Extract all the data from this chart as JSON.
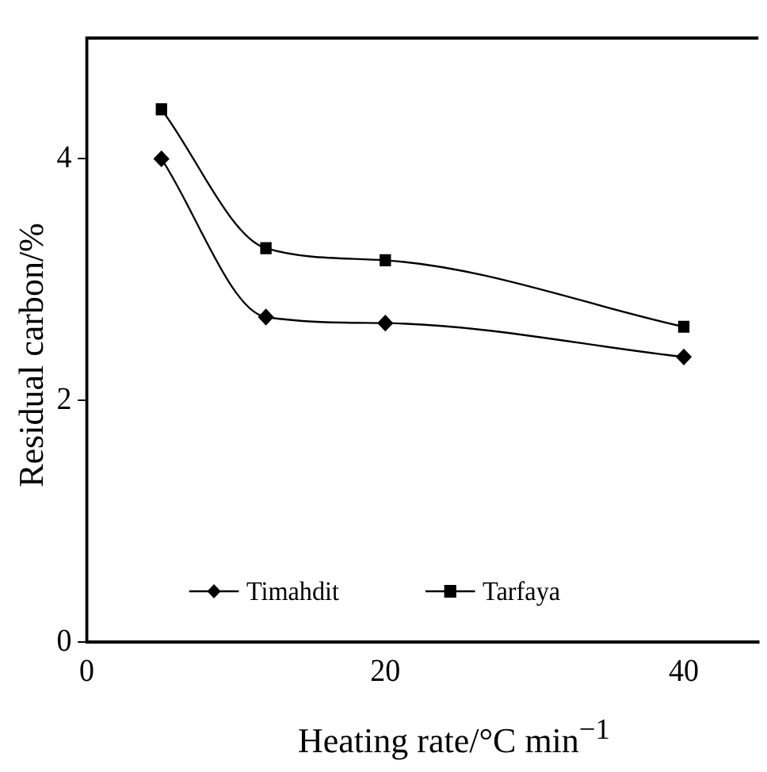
{
  "chart_data": {
    "type": "line",
    "xlabel": "Heating rate/°C min$^{−1}$",
    "ylabel": "Residual carbon/%",
    "x": [
      5,
      12,
      20,
      40
    ],
    "series": [
      {
        "name": "Timahdit",
        "color": "#000000",
        "marker": "diamond",
        "values": [
          4.0,
          2.69,
          2.64,
          2.36
        ]
      },
      {
        "name": "Tarfaya",
        "color": "#000000",
        "marker": "square",
        "values": [
          4.41,
          3.26,
          3.16,
          2.61
        ]
      }
    ],
    "xlim": [
      0,
      45
    ],
    "ylim": [
      0,
      5
    ],
    "xticks": [
      0,
      20,
      40
    ],
    "yticks": [
      0,
      2,
      4
    ],
    "grid": false,
    "legend": "bottom",
    "line_style": "solid"
  }
}
